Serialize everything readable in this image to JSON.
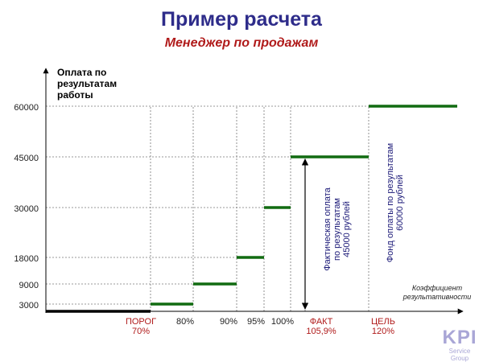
{
  "header": {
    "title": "Пример расчета",
    "subtitle": "Менеджер по продажам"
  },
  "logo": {
    "text": "KPI",
    "sub": "Service Group"
  },
  "colors": {
    "step": "#116b11",
    "base": "#000000",
    "red_label": "#b01a1a",
    "navy_text": "#1c1a78",
    "axis_text": "#222222"
  },
  "chart_data": {
    "type": "line",
    "ylabel": "Оплата по\nрезультатам\nработы",
    "xlabel": "Коэффициент\nрезультативности",
    "y_ticks": [
      3000,
      9000,
      18000,
      30000,
      45000,
      60000
    ],
    "x_ticks": [
      {
        "label": "ПОРОГ\n70%",
        "value": 70,
        "highlight": true
      },
      {
        "label": "80%",
        "value": 80,
        "highlight": false
      },
      {
        "label": "90%",
        "value": 90,
        "highlight": false
      },
      {
        "label": "95%",
        "value": 95,
        "highlight": false
      },
      {
        "label": "100%",
        "value": 100,
        "highlight": false
      },
      {
        "label": "ФАКТ\n105,9%",
        "value": 105.9,
        "highlight": true
      },
      {
        "label": "ЦЕЛЬ\n120%",
        "value": 120,
        "highlight": true
      }
    ],
    "steps": [
      {
        "from": 70,
        "to": 80,
        "value": 3000
      },
      {
        "from": 80,
        "to": 90,
        "value": 9000
      },
      {
        "from": 90,
        "to": 95,
        "value": 18000
      },
      {
        "from": 95,
        "to": 100,
        "value": 30000
      },
      {
        "from": 100,
        "to": 120,
        "value": 45000
      },
      {
        "from": 120,
        "to": null,
        "value": 60000
      }
    ],
    "base_segment": {
      "to": 70,
      "value": 0
    },
    "annotations": [
      {
        "text": "Фактическая  оплата\nпо результатам\n45000 рублей",
        "at": 105.9,
        "value_from": 0,
        "value_to": 45000
      },
      {
        "text": "Фонд оплаты по результатам\n60000 рублей",
        "at": 120
      }
    ]
  }
}
